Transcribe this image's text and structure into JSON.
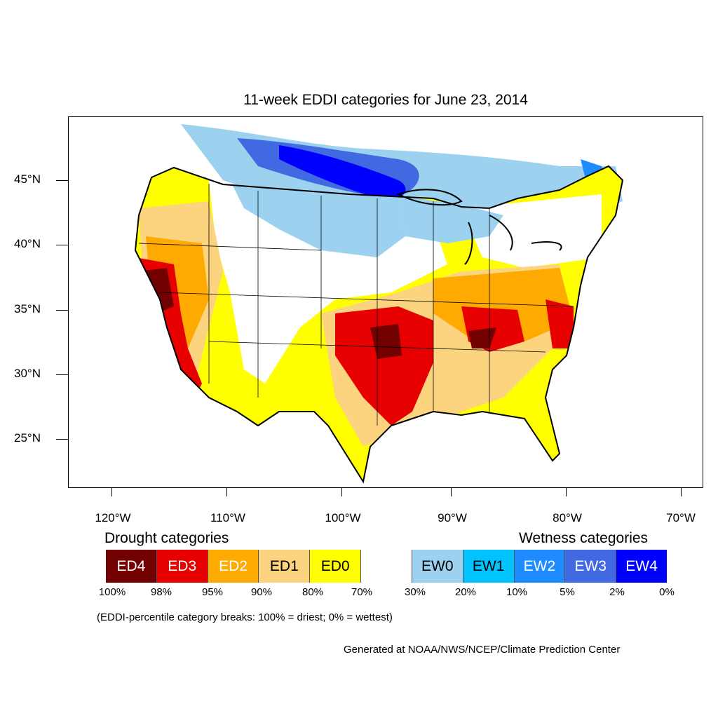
{
  "title": "11-week EDDI categories for June 23, 2014",
  "lat_labels": [
    "45°N",
    "40°N",
    "35°N",
    "30°N",
    "25°N"
  ],
  "lon_labels": [
    "120°W",
    "110°W",
    "100°W",
    "90°W",
    "80°W",
    "70°W"
  ],
  "legend": {
    "drought_heading": "Drought categories",
    "wetness_heading": "Wetness categories",
    "categories": [
      {
        "label": "ED4",
        "color": "#730000",
        "text_color": "#ffffff"
      },
      {
        "label": "ED3",
        "color": "#e60000",
        "text_color": "#ffffff"
      },
      {
        "label": "ED2",
        "color": "#ffaa00",
        "text_color": "#ffffff"
      },
      {
        "label": "ED1",
        "color": "#fcd37f",
        "text_color": "#000000"
      },
      {
        "label": "ED0",
        "color": "#ffff00",
        "text_color": "#000000"
      },
      {
        "label": "",
        "color": "#ffffff",
        "text_color": "#000000"
      },
      {
        "label": "EW0",
        "color": "#9cd1f0",
        "text_color": "#000000"
      },
      {
        "label": "EW1",
        "color": "#00c3ff",
        "text_color": "#000000"
      },
      {
        "label": "EW2",
        "color": "#1e8cff",
        "text_color": "#ffffff"
      },
      {
        "label": "EW3",
        "color": "#4169e1",
        "text_color": "#ffffff"
      },
      {
        "label": "EW4",
        "color": "#0000ff",
        "text_color": "#ffffff"
      }
    ],
    "percentiles": [
      "100%",
      "98%",
      "95%",
      "90%",
      "80%",
      "70%",
      "30%",
      "20%",
      "10%",
      "5%",
      "2%",
      "0%"
    ]
  },
  "note": "(EDDI-percentile category breaks: 100% = driest; 0% = wettest)",
  "credit": "Generated at NOAA/NWS/NCEP/Climate Prediction Center"
}
